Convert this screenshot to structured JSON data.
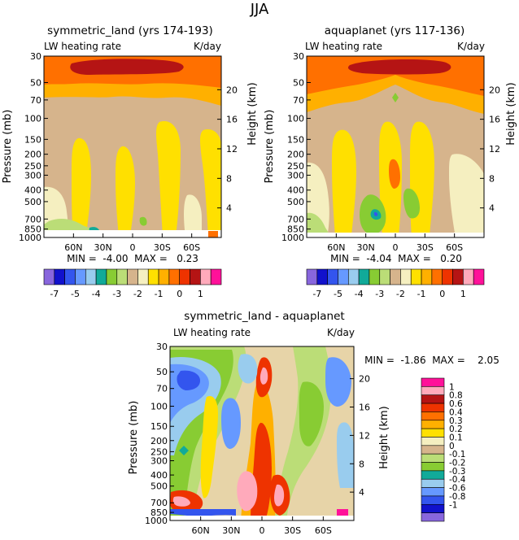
{
  "figure_title": "JJA",
  "panels": [
    {
      "id": "symland",
      "title": "symmetric_land (yrs 174-193)",
      "left_label": "LW heating rate",
      "right_label": "K/day",
      "stats_line": "MIN =  -4.00  MAX =   0.23",
      "ylabel": "Pressure (mb)",
      "y2label": "Height (km)"
    },
    {
      "id": "aqua",
      "title": "aquaplanet (yrs 117-136)",
      "left_label": "LW heating rate",
      "right_label": "K/day",
      "stats_line": "MIN =  -4.04  MAX =   0.20",
      "ylabel": "Pressure (mb)",
      "y2label": "Height (km)"
    },
    {
      "id": "diff",
      "title": "symmetric_land - aquaplanet",
      "left_label": "LW heating rate",
      "right_label": "K/day",
      "stats_line": "MIN =  -1.86  MAX =    2.05",
      "ylabel": "Pressure (mb)",
      "y2label": "Height (km)"
    }
  ],
  "chart_data": [
    {
      "type": "heatmap",
      "name": "symmetric_land",
      "title": "symmetric_land (yrs 174-193)",
      "variable": "LW heating rate",
      "units": "K/day",
      "season": "JJA",
      "xlabel": "",
      "ylabel": "Pressure (mb)",
      "y2label": "Height (km)",
      "x_ticks": [
        "60N",
        "30N",
        "0",
        "30S",
        "60S"
      ],
      "x_tick_values": [
        60,
        30,
        0,
        -30,
        -60
      ],
      "xlim": [
        90,
        -90
      ],
      "y_ticks": [
        30,
        50,
        70,
        100,
        150,
        200,
        250,
        300,
        400,
        500,
        700,
        850,
        1000
      ],
      "ylim": [
        1000,
        30
      ],
      "height_ticks_km": [
        4,
        8,
        12,
        16,
        20
      ],
      "min": -4.0,
      "max": 0.23,
      "colorbar_ticks": [
        "-7",
        "-5",
        "-4",
        "-3",
        "-2",
        "-1",
        "0",
        "1"
      ]
    },
    {
      "type": "heatmap",
      "name": "aquaplanet",
      "title": "aquaplanet (yrs 117-136)",
      "variable": "LW heating rate",
      "units": "K/day",
      "season": "JJA",
      "xlabel": "",
      "ylabel": "Pressure (mb)",
      "y2label": "Height (km)",
      "x_ticks": [
        "60N",
        "30N",
        "0",
        "30S",
        "60S"
      ],
      "x_tick_values": [
        60,
        30,
        0,
        -30,
        -60
      ],
      "xlim": [
        90,
        -90
      ],
      "y_ticks": [
        30,
        50,
        70,
        100,
        150,
        200,
        250,
        300,
        400,
        500,
        700,
        850,
        1000
      ],
      "ylim": [
        1000,
        30
      ],
      "height_ticks_km": [
        4,
        8,
        12,
        16,
        20
      ],
      "min": -4.04,
      "max": 0.2,
      "colorbar_ticks": [
        "-7",
        "-5",
        "-4",
        "-3",
        "-2",
        "-1",
        "0",
        "1"
      ]
    },
    {
      "type": "heatmap",
      "name": "difference",
      "title": "symmetric_land - aquaplanet",
      "variable": "LW heating rate",
      "units": "K/day",
      "season": "JJA",
      "xlabel": "",
      "ylabel": "Pressure (mb)",
      "y2label": "Height (km)",
      "x_ticks": [
        "60N",
        "30N",
        "0",
        "30S",
        "60S"
      ],
      "x_tick_values": [
        60,
        30,
        0,
        -30,
        -60
      ],
      "xlim": [
        90,
        -90
      ],
      "y_ticks": [
        30,
        50,
        70,
        100,
        150,
        200,
        250,
        300,
        400,
        500,
        700,
        850,
        1000
      ],
      "ylim": [
        1000,
        30
      ],
      "height_ticks_km": [
        4,
        8,
        12,
        16,
        20
      ],
      "min": -1.86,
      "max": 2.05,
      "colorbar_ticks": [
        "1",
        "0.8",
        "0.6",
        "0.4",
        "0.3",
        "0.2",
        "0.1",
        "0",
        "-0.1",
        "-0.2",
        "-0.3",
        "-0.4",
        "-0.6",
        "-0.8",
        "-1"
      ]
    }
  ],
  "colors": {
    "abs_scale": [
      "#8866dd",
      "#1111cc",
      "#3355ee",
      "#6699ff",
      "#99ccee",
      "#11aa99",
      "#88cc33",
      "#bbdd77",
      "#d6b48c",
      "#f5efc0",
      "#ffe000",
      "#ffb000",
      "#ff7000",
      "#ee3300",
      "#b51414",
      "#ffaabb",
      "#ff1199"
    ],
    "diff_scale": [
      "#ff1199",
      "#ffaabb",
      "#b51414",
      "#ee3300",
      "#ff7000",
      "#ffb000",
      "#ffe000",
      "#f5efc0",
      "#d6b48c",
      "#bbdd77",
      "#88cc33",
      "#11aa99",
      "#99ccee",
      "#6699ff",
      "#3355ee",
      "#1111cc",
      "#8866dd"
    ]
  }
}
